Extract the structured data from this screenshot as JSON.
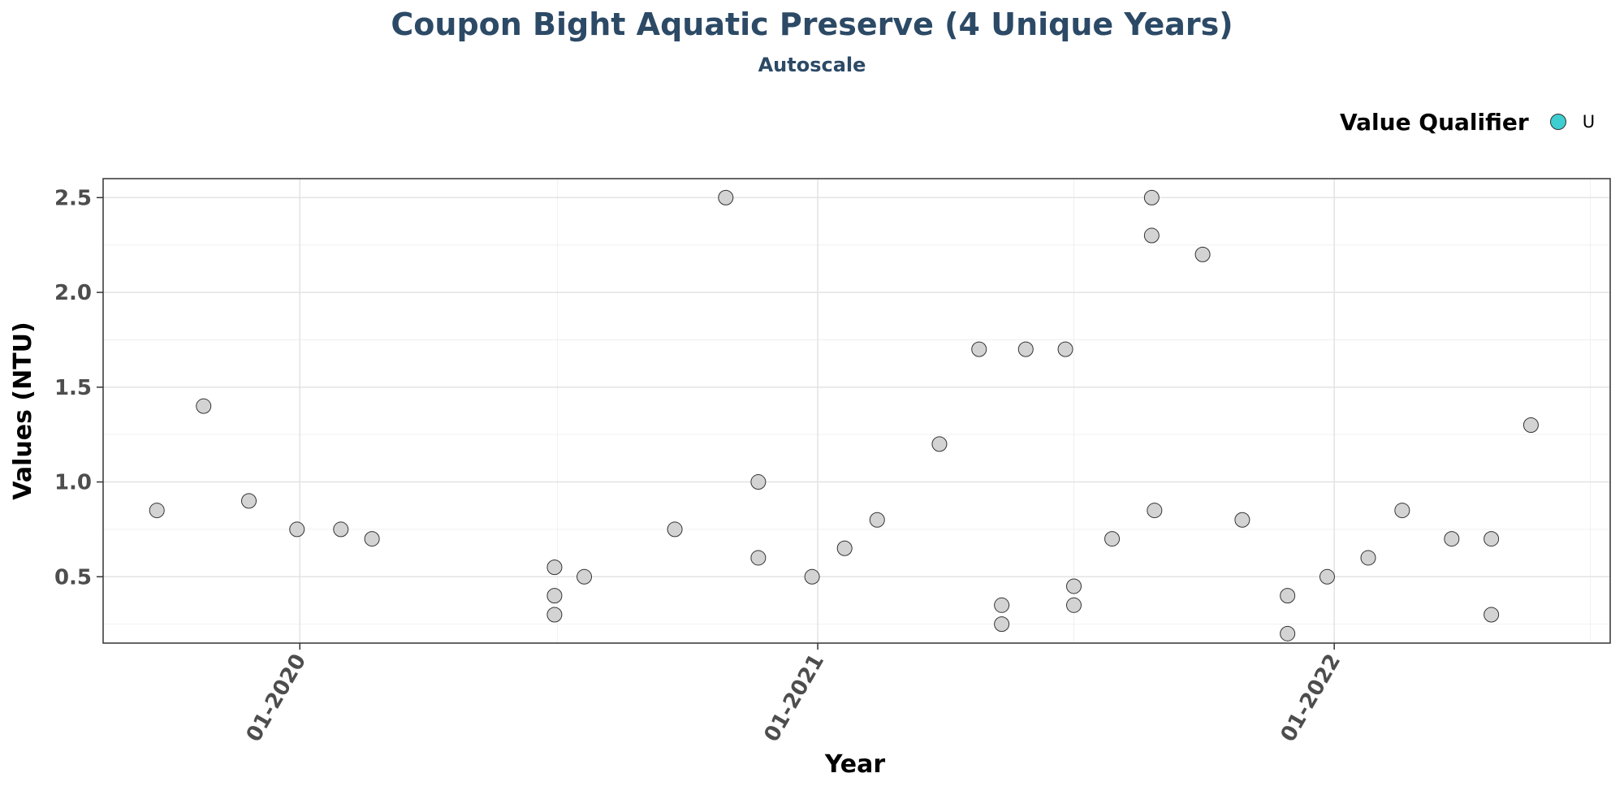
{
  "chart_data": {
    "type": "scatter",
    "title": "Coupon Bight Aquatic Preserve (4 Unique Years)",
    "subtitle": "Autoscale",
    "xlabel": "Year",
    "ylabel": "Values (NTU)",
    "x_ticks": [
      "01-2020",
      "01-2021",
      "01-2022"
    ],
    "y_ticks": [
      "0.5",
      "1.0",
      "1.5",
      "2.0",
      "2.5"
    ],
    "xlim": [
      "2019-08-15",
      "2022-07-15"
    ],
    "ylim": [
      0.15,
      2.6
    ],
    "grid": true,
    "legend": {
      "title": "Value Qualifier",
      "entries": [
        {
          "label": "U",
          "color": "#3ecdd0"
        }
      ],
      "position": "top-right"
    },
    "point_fill": "#d3d3d3",
    "point_stroke": "#333333",
    "points": [
      {
        "x": "2019-09-22",
        "y": 0.85
      },
      {
        "x": "2019-10-25",
        "y": 1.4
      },
      {
        "x": "2019-11-26",
        "y": 0.9
      },
      {
        "x": "2019-12-30",
        "y": 0.75
      },
      {
        "x": "2020-01-30",
        "y": 0.75
      },
      {
        "x": "2020-02-21",
        "y": 0.7
      },
      {
        "x": "2020-06-29",
        "y": 0.55
      },
      {
        "x": "2020-06-29",
        "y": 0.4
      },
      {
        "x": "2020-06-29",
        "y": 0.3
      },
      {
        "x": "2020-07-20",
        "y": 0.5
      },
      {
        "x": "2020-09-22",
        "y": 0.75
      },
      {
        "x": "2020-10-28",
        "y": 2.5
      },
      {
        "x": "2020-11-20",
        "y": 1.0
      },
      {
        "x": "2020-11-20",
        "y": 0.6
      },
      {
        "x": "2020-12-28",
        "y": 0.5
      },
      {
        "x": "2021-01-20",
        "y": 0.65
      },
      {
        "x": "2021-02-12",
        "y": 0.8
      },
      {
        "x": "2021-03-28",
        "y": 1.2
      },
      {
        "x": "2021-04-25",
        "y": 1.7
      },
      {
        "x": "2021-05-11",
        "y": 0.35
      },
      {
        "x": "2021-05-11",
        "y": 0.25
      },
      {
        "x": "2021-05-28",
        "y": 1.7
      },
      {
        "x": "2021-06-25",
        "y": 1.7
      },
      {
        "x": "2021-07-01",
        "y": 0.45
      },
      {
        "x": "2021-07-01",
        "y": 0.35
      },
      {
        "x": "2021-07-28",
        "y": 0.7
      },
      {
        "x": "2021-08-25",
        "y": 2.5
      },
      {
        "x": "2021-08-25",
        "y": 2.3
      },
      {
        "x": "2021-08-27",
        "y": 0.85
      },
      {
        "x": "2021-09-30",
        "y": 2.2
      },
      {
        "x": "2021-10-28",
        "y": 0.8
      },
      {
        "x": "2021-11-29",
        "y": 0.4
      },
      {
        "x": "2021-11-29",
        "y": 0.2
      },
      {
        "x": "2021-12-27",
        "y": 0.5
      },
      {
        "x": "2022-01-25",
        "y": 0.6
      },
      {
        "x": "2022-02-18",
        "y": 0.85
      },
      {
        "x": "2022-03-25",
        "y": 0.7
      },
      {
        "x": "2022-04-22",
        "y": 0.7
      },
      {
        "x": "2022-04-22",
        "y": 0.3
      },
      {
        "x": "2022-05-20",
        "y": 1.3
      }
    ]
  }
}
